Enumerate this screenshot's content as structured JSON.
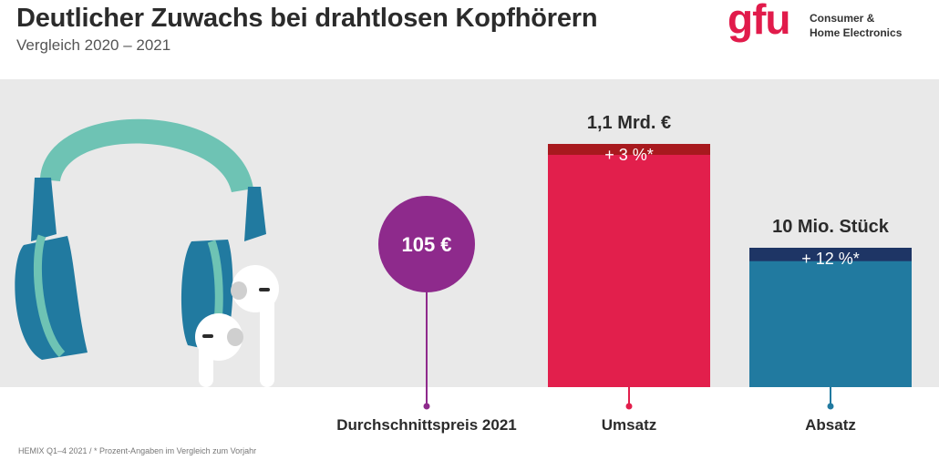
{
  "header": {
    "title": "Deutlicher Zuwachs bei drahtlosen Kopfhörern",
    "subtitle": "Vergleich 2020 – 2021"
  },
  "logo": {
    "word": "gfu",
    "line1": "Consumer &",
    "line2": "Home Electronics"
  },
  "footnote": "HEMIX Q1–4 2021 / * Prozent-Angaben im Vergleich zum Vorjahr",
  "colors": {
    "band": "#e9e9e9",
    "price_circle": "#8e2a8c",
    "umsatz_bar": "#e21f4c",
    "umsatz_increase": "#a8191e",
    "absatz_bar": "#217aa0",
    "absatz_increase": "#1e3565",
    "headband": "#6ec3b4",
    "earcup": "#217aa0"
  },
  "chart_data": {
    "type": "bar",
    "items": [
      {
        "category": "Durchschnittspreis 2021",
        "display": "circle",
        "value_label": "105 €"
      },
      {
        "category": "Umsatz",
        "display": "bar",
        "value_label": "1,1 Mrd. €",
        "change_label": "+ 3 %*",
        "change_percent": 3
      },
      {
        "category": "Absatz",
        "display": "bar",
        "value_label": "10 Mio. Stück",
        "change_label": "+ 12 %*",
        "change_percent": 12
      }
    ]
  }
}
